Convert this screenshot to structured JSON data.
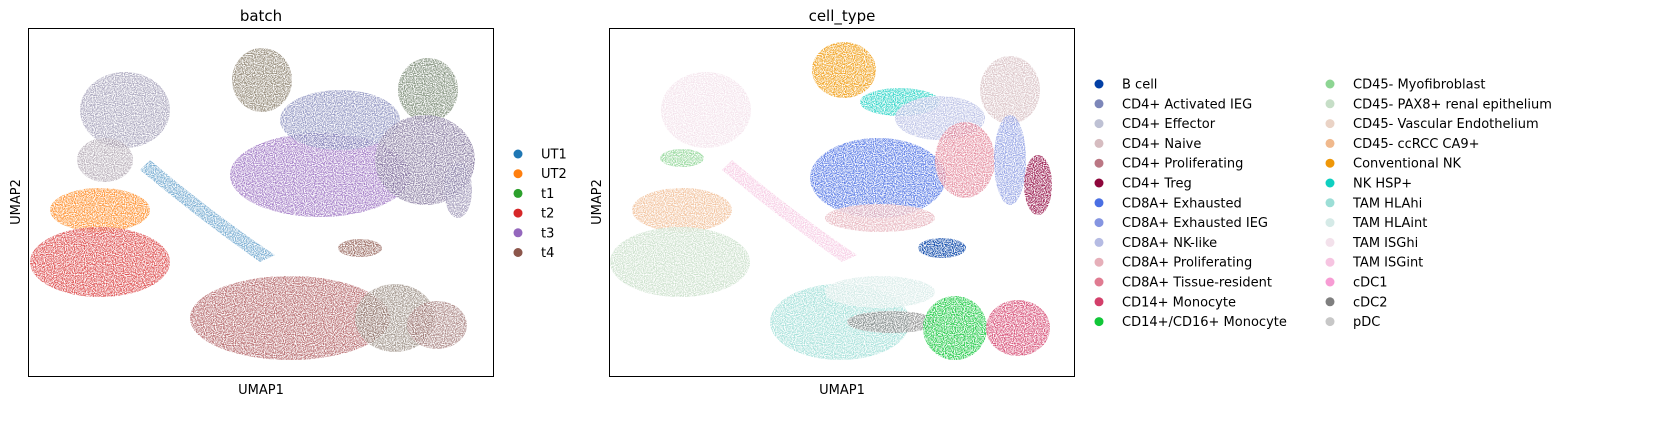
{
  "figure": {
    "panels": [
      {
        "title": "batch",
        "xlabel": "UMAP1",
        "ylabel": "UMAP2",
        "legend": [
          {
            "label": "UT1",
            "color": "#1f77b4"
          },
          {
            "label": "UT2",
            "color": "#ff7f0e"
          },
          {
            "label": "t1",
            "color": "#2ca02c"
          },
          {
            "label": "t2",
            "color": "#d62728"
          },
          {
            "label": "t3",
            "color": "#9467bd"
          },
          {
            "label": "t4",
            "color": "#8c564b"
          }
        ]
      },
      {
        "title": "cell_type",
        "xlabel": "UMAP1",
        "ylabel": "UMAP2",
        "legend": [
          {
            "label": "B cell",
            "color": "#023fa5"
          },
          {
            "label": "CD4+ Activated IEG",
            "color": "#7d87b9"
          },
          {
            "label": "CD4+ Effector",
            "color": "#bec1d4"
          },
          {
            "label": "CD4+ Naive",
            "color": "#d6bcc0"
          },
          {
            "label": "CD4+ Proliferating",
            "color": "#bb7784"
          },
          {
            "label": "CD4+ Treg",
            "color": "#8e063b"
          },
          {
            "label": "CD8A+ Exhausted",
            "color": "#4a6fe3"
          },
          {
            "label": "CD8A+ Exhausted IEG",
            "color": "#8595e1"
          },
          {
            "label": "CD8A+ NK-like",
            "color": "#b5bbe3"
          },
          {
            "label": "CD8A+ Proliferating",
            "color": "#e6afb9"
          },
          {
            "label": "CD8A+ Tissue-resident",
            "color": "#e07b91"
          },
          {
            "label": "CD14+ Monocyte",
            "color": "#d33f6a"
          },
          {
            "label": "CD14+/CD16+ Monocyte",
            "color": "#11c638"
          },
          {
            "label": "CD45- Myofibroblast",
            "color": "#8dd593"
          },
          {
            "label": "CD45- PAX8+ renal epithelium",
            "color": "#c6dec7"
          },
          {
            "label": "CD45- Vascular Endothelium",
            "color": "#ead3c6"
          },
          {
            "label": "CD45- ccRCC CA9+",
            "color": "#f0b98d"
          },
          {
            "label": "Conventional NK",
            "color": "#ef9708"
          },
          {
            "label": "NK HSP+",
            "color": "#0fcfc0"
          },
          {
            "label": "TAM HLAhi",
            "color": "#9cded6"
          },
          {
            "label": "TAM HLAint",
            "color": "#d5eae7"
          },
          {
            "label": "TAM ISGhi",
            "color": "#f3e1eb"
          },
          {
            "label": "TAM ISGint",
            "color": "#f6c4e1"
          },
          {
            "label": "cDC1",
            "color": "#f79cd4"
          },
          {
            "label": "cDC2",
            "color": "#7f7f7f"
          },
          {
            "label": "pDC",
            "color": "#c7c7c7"
          }
        ]
      }
    ]
  },
  "chart_data": [
    {
      "type": "scatter",
      "title": "batch",
      "xlabel": "UMAP1",
      "ylabel": "UMAP2",
      "ticks_shown": false,
      "grid": false,
      "legend_placement": "right",
      "series": [
        {
          "name": "UT1",
          "color": "#1f77b4"
        },
        {
          "name": "UT2",
          "color": "#ff7f0e"
        },
        {
          "name": "t1",
          "color": "#2ca02c"
        },
        {
          "name": "t2",
          "color": "#d62728"
        },
        {
          "name": "t3",
          "color": "#9467bd"
        },
        {
          "name": "t4",
          "color": "#8c564b"
        }
      ]
    },
    {
      "type": "scatter",
      "title": "cell_type",
      "xlabel": "UMAP1",
      "ylabel": "UMAP2",
      "ticks_shown": false,
      "grid": false,
      "legend_placement": "right",
      "legend_columns": 2
    }
  ]
}
